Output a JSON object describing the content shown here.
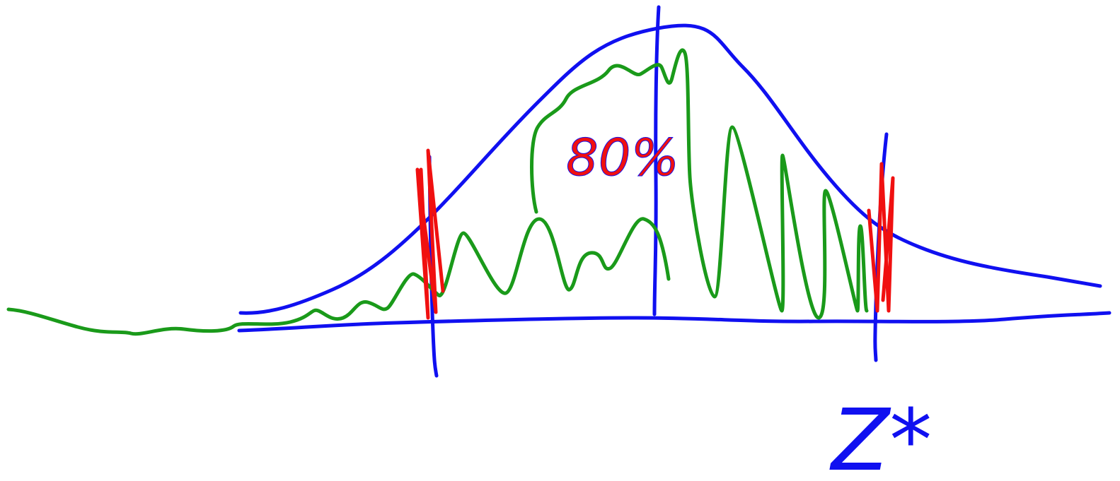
{
  "sketch": {
    "center_label": "80%",
    "critical_label": "Z*"
  }
}
